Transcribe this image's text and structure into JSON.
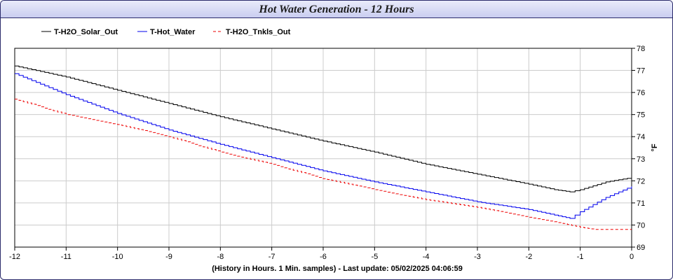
{
  "chart_data": {
    "type": "line",
    "title": "Hot Water Generation - 12 Hours",
    "xlabel": "(History in Hours. 1 Min. samples) - Last update: 05/02/2025 04:06:59",
    "ylabel": "°F",
    "xlim": [
      -12,
      0
    ],
    "ylim": [
      69,
      78
    ],
    "xticks": [
      -12,
      -11,
      -10,
      -9,
      -8,
      -7,
      -6,
      -5,
      -4,
      -3,
      -2,
      -1,
      0
    ],
    "yticks": [
      69,
      70,
      71,
      72,
      73,
      74,
      75,
      76,
      77,
      78
    ],
    "grid": true,
    "legend_position": "top-left",
    "series": [
      {
        "name": "T-H2O_Solar_Out",
        "color": "#000000",
        "style": "solid",
        "x": [
          -12,
          -11,
          -10,
          -9,
          -8,
          -7,
          -6,
          -5,
          -4,
          -3,
          -2,
          -1.5,
          -1.2,
          -1.0,
          -0.5,
          0
        ],
        "y": [
          77.2,
          76.7,
          76.1,
          75.5,
          74.9,
          74.35,
          73.8,
          73.3,
          72.75,
          72.3,
          71.85,
          71.6,
          71.5,
          71.6,
          71.95,
          72.15
        ]
      },
      {
        "name": "T-Hot_Water",
        "color": "#0000ee",
        "style": "solid",
        "x": [
          -12,
          -11,
          -10,
          -9,
          -8,
          -7,
          -6,
          -5,
          -4,
          -3,
          -2,
          -1.5,
          -1.2,
          -1.0,
          -0.5,
          0
        ],
        "y": [
          76.85,
          75.9,
          75.05,
          74.3,
          73.65,
          73.05,
          72.45,
          71.95,
          71.5,
          71.05,
          70.7,
          70.45,
          70.3,
          70.6,
          71.25,
          71.75
        ]
      },
      {
        "name": "T-H2O_Tnkls_Out",
        "color": "#ee0000",
        "style": "dashed",
        "x": [
          -12,
          -11,
          -10,
          -9,
          -8,
          -7,
          -6,
          -5,
          -4,
          -3,
          -2,
          -1.5,
          -1.0,
          -0.7,
          0
        ],
        "y": [
          75.7,
          75.0,
          74.55,
          74.0,
          73.3,
          72.75,
          72.1,
          71.6,
          71.15,
          70.8,
          70.35,
          70.15,
          69.9,
          69.8,
          69.8
        ]
      }
    ]
  }
}
